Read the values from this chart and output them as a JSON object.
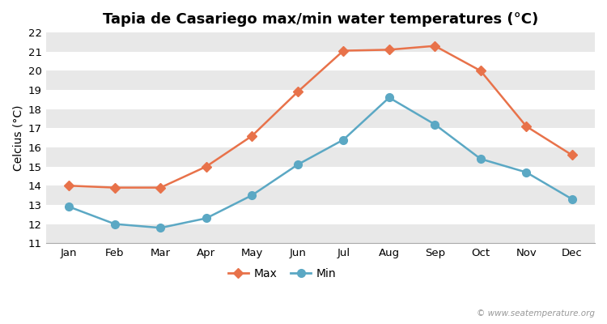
{
  "title": "Tapia de Casariego max/min water temperatures (°C)",
  "ylabel": "Celcius (°C)",
  "months": [
    "Jan",
    "Feb",
    "Mar",
    "Apr",
    "May",
    "Jun",
    "Jul",
    "Aug",
    "Sep",
    "Oct",
    "Nov",
    "Dec"
  ],
  "max_values": [
    14.0,
    13.9,
    13.9,
    15.0,
    16.6,
    18.9,
    21.05,
    21.1,
    21.3,
    20.0,
    17.1,
    15.6
  ],
  "min_values": [
    12.9,
    12.0,
    11.8,
    12.3,
    13.5,
    15.1,
    16.4,
    18.6,
    17.2,
    15.4,
    14.7,
    13.3
  ],
  "max_color": "#E8724A",
  "min_color": "#5BA8C4",
  "max_marker": "D",
  "min_marker": "o",
  "max_marker_size": 6,
  "min_marker_size": 7,
  "line_width": 1.8,
  "ylim": [
    11,
    22
  ],
  "yticks": [
    11,
    12,
    13,
    14,
    15,
    16,
    17,
    18,
    19,
    20,
    21,
    22
  ],
  "fig_bg_color": "#FFFFFF",
  "plot_bg_color": "#FFFFFF",
  "band_color_odd": "#E8E8E8",
  "band_color_even": "#FFFFFF",
  "legend_labels": [
    "Max",
    "Min"
  ],
  "watermark": "© www.seatemperature.org",
  "title_fontsize": 13,
  "label_fontsize": 10,
  "tick_fontsize": 9.5,
  "legend_fontsize": 10
}
